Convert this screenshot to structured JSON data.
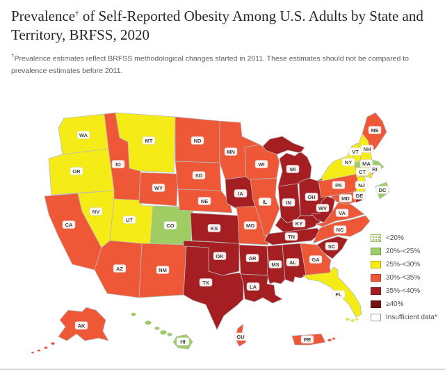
{
  "header": {
    "title_main": "Prevalence",
    "title_sup": "†",
    "title_rest": " of Self-Reported Obesity Among U.S. Adults by State and Territory, BRFSS, 2020",
    "footnote_sup": "†",
    "footnote_text": "Prevalence estimates reflect BRFSS methodological changes started in 2011. These estimates should not be compared to prevalence estimates before 2011."
  },
  "colors": {
    "lt20": "#ffffff",
    "c20_25": "#a0cd63",
    "c25_30": "#f5eb16",
    "c30_35": "#ee5836",
    "c35_40": "#a51e22",
    "c40plus": "#701712",
    "insufficient": "#ffffff",
    "state_border": "#b7babc",
    "label_text": "#454545",
    "label_pill": "#ffffff"
  },
  "legend": {
    "items": [
      {
        "label": "<20%",
        "color_key": "lt20",
        "dotted": true
      },
      {
        "label": "20%-<25%",
        "color_key": "c20_25",
        "dotted": false
      },
      {
        "label": "25%-<30%",
        "color_key": "c25_30",
        "dotted": false
      },
      {
        "label": "30%-<35%",
        "color_key": "c30_35",
        "dotted": false
      },
      {
        "label": "35%-<40%",
        "color_key": "c35_40",
        "dotted": false
      },
      {
        "label": "≥40%",
        "color_key": "c40plus",
        "dotted": false
      },
      {
        "label": "Insufficient data*",
        "color_key": "insufficient",
        "dotted": false
      }
    ]
  },
  "map": {
    "states": [
      {
        "abbr": "WA",
        "category": "c25_30"
      },
      {
        "abbr": "OR",
        "category": "c25_30"
      },
      {
        "abbr": "CA",
        "category": "c30_35"
      },
      {
        "abbr": "NV",
        "category": "c25_30"
      },
      {
        "abbr": "ID",
        "category": "c30_35"
      },
      {
        "abbr": "UT",
        "category": "c25_30"
      },
      {
        "abbr": "AZ",
        "category": "c30_35"
      },
      {
        "abbr": "MT",
        "category": "c25_30"
      },
      {
        "abbr": "WY",
        "category": "c30_35"
      },
      {
        "abbr": "CO",
        "category": "c20_25"
      },
      {
        "abbr": "NM",
        "category": "c30_35"
      },
      {
        "abbr": "ND",
        "category": "c30_35"
      },
      {
        "abbr": "SD",
        "category": "c30_35"
      },
      {
        "abbr": "NE",
        "category": "c30_35"
      },
      {
        "abbr": "KS",
        "category": "c35_40"
      },
      {
        "abbr": "OK",
        "category": "c35_40"
      },
      {
        "abbr": "TX",
        "category": "c35_40"
      },
      {
        "abbr": "MN",
        "category": "c30_35"
      },
      {
        "abbr": "IA",
        "category": "c35_40"
      },
      {
        "abbr": "MO",
        "category": "c30_35"
      },
      {
        "abbr": "AR",
        "category": "c35_40"
      },
      {
        "abbr": "LA",
        "category": "c35_40"
      },
      {
        "abbr": "WI",
        "category": "c30_35"
      },
      {
        "abbr": "IL",
        "category": "c30_35"
      },
      {
        "abbr": "MS",
        "category": "c35_40"
      },
      {
        "abbr": "MI",
        "category": "c35_40"
      },
      {
        "abbr": "IN",
        "category": "c35_40"
      },
      {
        "abbr": "OH",
        "category": "c35_40"
      },
      {
        "abbr": "KY",
        "category": "c35_40"
      },
      {
        "abbr": "TN",
        "category": "c35_40"
      },
      {
        "abbr": "AL",
        "category": "c35_40"
      },
      {
        "abbr": "GA",
        "category": "c30_35"
      },
      {
        "abbr": "FL",
        "category": "c25_30"
      },
      {
        "abbr": "SC",
        "category": "c35_40"
      },
      {
        "abbr": "NC",
        "category": "c30_35"
      },
      {
        "abbr": "VA",
        "category": "c30_35"
      },
      {
        "abbr": "WV",
        "category": "c35_40"
      },
      {
        "abbr": "MD",
        "category": "c30_35"
      },
      {
        "abbr": "DE",
        "category": "c35_40"
      },
      {
        "abbr": "DC",
        "category": "c20_25"
      },
      {
        "abbr": "PA",
        "category": "c30_35"
      },
      {
        "abbr": "NJ",
        "category": "c25_30"
      },
      {
        "abbr": "NY",
        "category": "c25_30"
      },
      {
        "abbr": "CT",
        "category": "c25_30"
      },
      {
        "abbr": "RI",
        "category": "c30_35"
      },
      {
        "abbr": "MA",
        "category": "c20_25"
      },
      {
        "abbr": "VT",
        "category": "c25_30"
      },
      {
        "abbr": "NH",
        "category": "c25_30"
      },
      {
        "abbr": "ME",
        "category": "c30_35"
      },
      {
        "abbr": "AK",
        "category": "c30_35"
      },
      {
        "abbr": "HI",
        "category": "c20_25"
      },
      {
        "abbr": "GU",
        "category": "c30_35"
      },
      {
        "abbr": "PR",
        "category": "c30_35"
      }
    ]
  }
}
